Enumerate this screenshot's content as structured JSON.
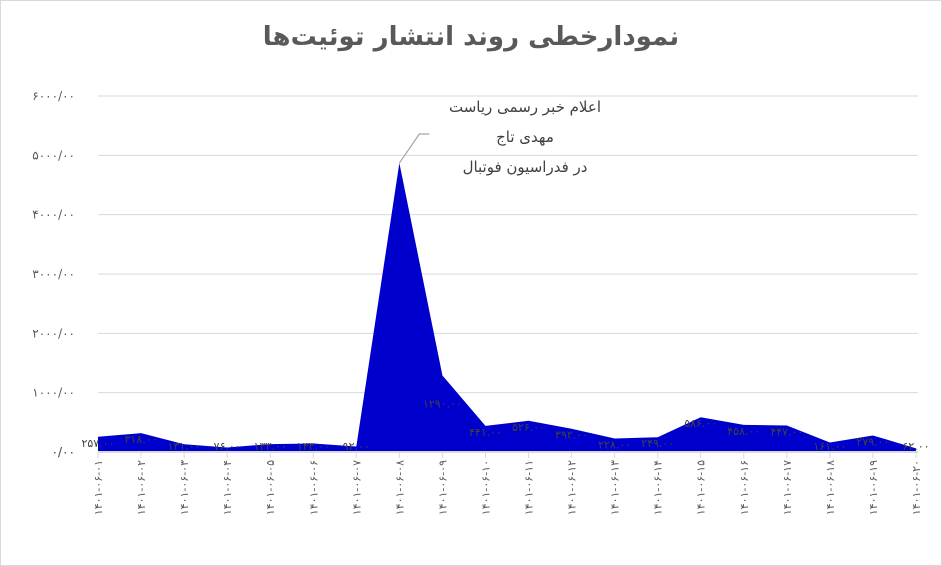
{
  "chart": {
    "title": "نمودارخطی روند انتشار توئیت‌ها",
    "annotation_lines": [
      "اعلام خبر رسمی ریاست",
      "مهدی تاج",
      "در فدراسیون فوتبال"
    ],
    "fill_color": "#0000CC",
    "grid_color": "#D9D9D9"
  },
  "chart_data": {
    "type": "area",
    "title": "نمودارخطی روند انتشار توئیت‌ها",
    "xlabel": "",
    "ylabel": "",
    "ylim": [
      0,
      6000
    ],
    "yticks": [
      "۰/۰۰",
      "۱۰۰۰/۰۰",
      "۲۰۰۰/۰۰",
      "۳۰۰۰/۰۰",
      "۴۰۰۰/۰۰",
      "۵۰۰۰/۰۰",
      "۶۰۰۰/۰۰"
    ],
    "grid": true,
    "legend": null,
    "categories": [
      "۱۴۰۱-۰۶-۰۱",
      "۱۴۰۱-۰۶-۰۲",
      "۱۴۰۱-۰۶-۰۳",
      "۱۴۰۱-۰۶-۰۴",
      "۱۴۰۱-۰۶-۰۵",
      "۱۴۰۱-۰۶-۰۶",
      "۱۴۰۱-۰۶-۰۷",
      "۱۴۰۱-۰۶-۰۸",
      "۱۴۰۱-۰۶-۰۹",
      "۱۴۰۱-۰۶-۱۰",
      "۱۴۰۱-۰۶-۱۱",
      "۱۴۰۱-۰۶-۱۲",
      "۱۴۰۱-۰۶-۱۳",
      "۱۴۰۱-۰۶-۱۴",
      "۱۴۰۱-۰۶-۱۵",
      "۱۴۰۱-۰۶-۱۶",
      "۱۴۰۱-۰۶-۱۷",
      "۱۴۰۱-۰۶-۱۸",
      "۱۴۰۱-۰۶-۱۹",
      "۱۴۰۱-۰۶-۲۰"
    ],
    "values": [
      257,
      318,
      131,
      76,
      133,
      143,
      92,
      4870,
      1290,
      441,
      526,
      392,
      228,
      249,
      586,
      458,
      447,
      161,
      279,
      62
    ],
    "data_labels": [
      "۲۵۷.۰۰",
      "۳۱۸.۰۰",
      "۱۳۱.۰۰",
      "۷۶.۰۰",
      "۱۳۳.۰۰",
      "۱۴۳.۰۰",
      "۹۲.۰۰",
      "",
      "۱۲۹۰.۰۰",
      "۴۴۱.۰۰",
      "۵۲۶.۰۰",
      "۳۹۲.۰۰",
      "۲۲۸.۰۰",
      "۲۴۹.۰۰",
      "۵۸۶.۰۰",
      "۴۵۸.۰۰",
      "۴۴۷.۰۰",
      "۱۶۱.۰۰",
      "۲۷۹.۰۰",
      "۶۲.۰۰"
    ],
    "annotation": {
      "index": 7,
      "text": "اعلام خبر رسمی ریاست مهدی تاج در فدراسیون فوتبال"
    }
  }
}
